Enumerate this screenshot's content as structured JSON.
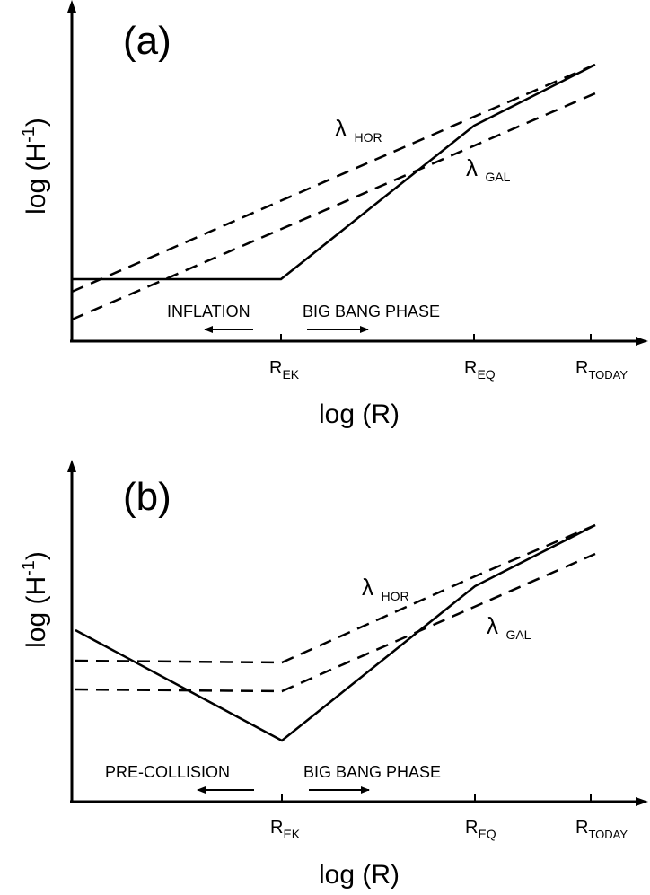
{
  "panels": [
    {
      "id": "a",
      "label": "(a)",
      "ylabel": "log (H",
      "ylabel_exp": "-1",
      "ylabel_close": ")",
      "xlabel": "log (R)",
      "ticks": [
        {
          "main": "R",
          "sub": "EK"
        },
        {
          "main": "R",
          "sub": "EQ"
        },
        {
          "main": "R",
          "sub": "TODAY"
        }
      ],
      "curve_labels": [
        {
          "symbol": "λ",
          "sub": "HOR"
        },
        {
          "symbol": "λ",
          "sub": "GAL"
        }
      ],
      "left_phase": "INFLATION",
      "right_phase": "BIG BANG PHASE"
    },
    {
      "id": "b",
      "label": "(b)",
      "ylabel": "log (H",
      "ylabel_exp": "-1",
      "ylabel_close": ")",
      "xlabel": "log (R)",
      "ticks": [
        {
          "main": "R",
          "sub": "EK"
        },
        {
          "main": "R",
          "sub": "EQ"
        },
        {
          "main": "R",
          "sub": "TODAY"
        }
      ],
      "curve_labels": [
        {
          "symbol": "λ",
          "sub": "HOR"
        },
        {
          "symbol": "λ",
          "sub": "GAL"
        }
      ],
      "left_phase": "PRE-COLLISION",
      "right_phase": "BIG BANG PHASE"
    }
  ],
  "colors": {
    "line": "#000000",
    "background": "#ffffff"
  }
}
